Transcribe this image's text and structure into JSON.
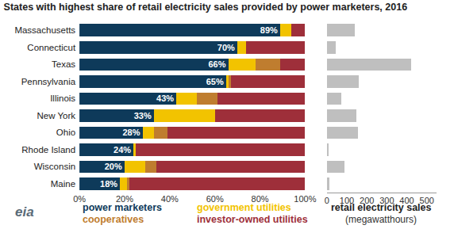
{
  "chart_data": [
    {
      "type": "bar",
      "title": "States with highest share of retail electricity sales provided by power marketers, 2016",
      "orientation": "horizontal",
      "stacked": true,
      "grid": false,
      "legend": "bottom",
      "categories": [
        "Massachusetts",
        "Connecticut",
        "Texas",
        "Pennsylvania",
        "Illinois",
        "New York",
        "Ohio",
        "Rhode Island",
        "Wisconsin",
        "Maine"
      ],
      "series": [
        {
          "name": "power marketers",
          "color": "#0e3a5a",
          "data_labels": true,
          "values": [
            89,
            70,
            66,
            65,
            43,
            33,
            28,
            24,
            20,
            18
          ],
          "value_labels": [
            "89%",
            "70%",
            "66%",
            "65%",
            "43%",
            "33%",
            "28%",
            "24%",
            "20%",
            "18%"
          ]
        },
        {
          "name": "government utilities",
          "color": "#f2c300",
          "values": [
            5,
            4,
            12,
            1,
            9,
            27,
            5,
            1,
            9,
            3
          ]
        },
        {
          "name": "cooperatives",
          "color": "#bf7d2f",
          "values": [
            0,
            0,
            11,
            1,
            9,
            0,
            6,
            0,
            5,
            1
          ]
        },
        {
          "name": "investor-owned utilities",
          "color": "#9e2f3a",
          "values": [
            6,
            26,
            11,
            33,
            39,
            40,
            61,
            75,
            66,
            78
          ]
        }
      ],
      "xlim": [
        0,
        100
      ],
      "xticks": [
        {
          "value": 0,
          "label": "0%"
        },
        {
          "value": 20,
          "label": "20%"
        },
        {
          "value": 40,
          "label": "40%"
        },
        {
          "value": 60,
          "label": "60%"
        },
        {
          "value": 80,
          "label": "80%"
        },
        {
          "value": 100,
          "label": "100%"
        }
      ],
      "annotations": [
        {
          "text": "eia"
        }
      ]
    },
    {
      "type": "bar",
      "title": "retail electricity sales",
      "subtitle": "(megawatthours)",
      "orientation": "horizontal",
      "grid": false,
      "tick_labels": "x",
      "color": "#bfbfbf",
      "categories": [
        "Massachusetts",
        "Connecticut",
        "Texas",
        "Pennsylvania",
        "Illinois",
        "New York",
        "Ohio",
        "Rhode Island",
        "Wisconsin",
        "Maine"
      ],
      "values": [
        140,
        45,
        420,
        160,
        72,
        148,
        155,
        8,
        88,
        12
      ],
      "xlim": [
        0,
        550
      ],
      "xticks": [
        0,
        100,
        200,
        300,
        400,
        500
      ]
    }
  ]
}
